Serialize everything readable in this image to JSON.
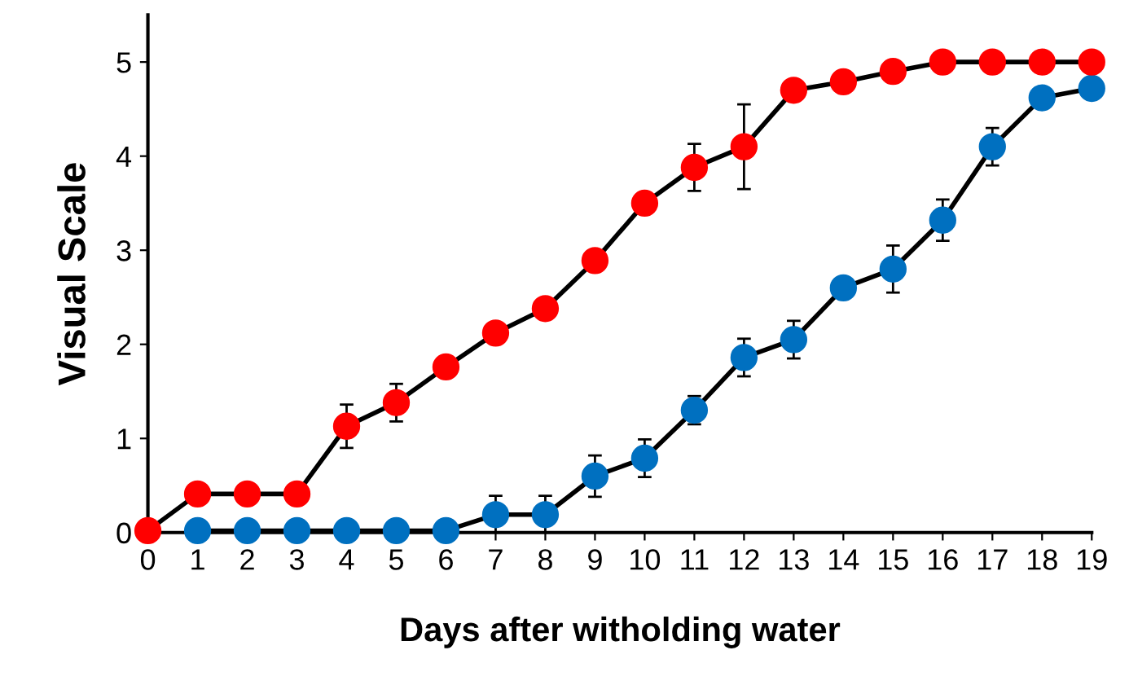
{
  "chart_data": {
    "type": "line",
    "xlabel": "Days after witholding water",
    "ylabel": "Visual Scale",
    "x": [
      0,
      1,
      2,
      3,
      4,
      5,
      6,
      7,
      8,
      9,
      10,
      11,
      12,
      13,
      14,
      15,
      16,
      17,
      18,
      19
    ],
    "series": [
      {
        "color": "#ff0000",
        "values": [
          0.02,
          0.41,
          0.41,
          0.41,
          1.13,
          1.38,
          1.76,
          2.12,
          2.38,
          2.89,
          3.5,
          3.88,
          4.1,
          4.7,
          4.79,
          4.9,
          5.0,
          5.0,
          5.0,
          5.0
        ],
        "errors": [
          null,
          null,
          null,
          null,
          0.23,
          0.2,
          null,
          null,
          null,
          null,
          null,
          0.25,
          0.45,
          null,
          null,
          null,
          null,
          null,
          null,
          null
        ]
      },
      {
        "color": "#0070c0",
        "values": [
          null,
          0.02,
          0.02,
          0.02,
          0.02,
          0.02,
          0.02,
          0.19,
          0.19,
          0.6,
          0.79,
          1.3,
          1.86,
          2.05,
          2.6,
          2.8,
          3.32,
          4.1,
          4.62,
          4.72
        ],
        "errors": [
          null,
          null,
          null,
          null,
          null,
          null,
          null,
          0.2,
          0.2,
          0.22,
          0.2,
          0.15,
          0.2,
          0.2,
          null,
          0.25,
          0.22,
          0.2,
          null,
          null
        ]
      }
    ],
    "xlim": [
      0,
      19
    ],
    "xticks": [
      0,
      1,
      2,
      3,
      4,
      5,
      6,
      7,
      8,
      9,
      10,
      11,
      12,
      13,
      14,
      15,
      16,
      17,
      18,
      19
    ],
    "ylim": [
      0,
      5.5
    ],
    "yticks": [
      0,
      1,
      2,
      3,
      4,
      5
    ],
    "grid": false,
    "marker": "circle",
    "line_style": "solid"
  }
}
